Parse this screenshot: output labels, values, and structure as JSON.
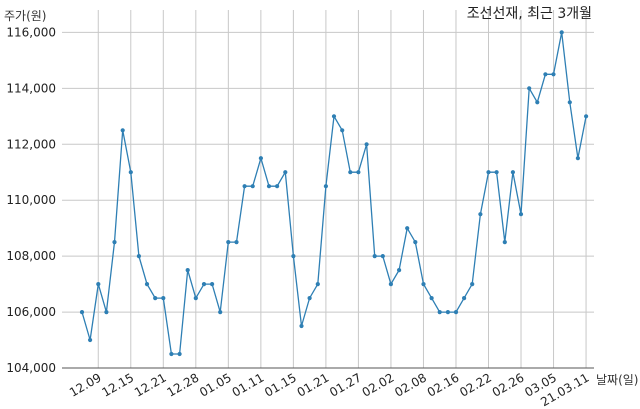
{
  "chart_data": {
    "type": "line",
    "title": "조선선재, 최근 3개월",
    "ylabel": "주가(원)",
    "xlabel": "날짜(일)",
    "ylim": [
      104000,
      116800
    ],
    "yticks": [
      104000,
      106000,
      108000,
      110000,
      112000,
      114000,
      116000
    ],
    "ytick_labels": [
      "104,000",
      "106,000",
      "108,000",
      "110,000",
      "112,000",
      "114,000",
      "116,000"
    ],
    "xticks": [
      {
        "index": 2,
        "label": "12.09"
      },
      {
        "index": 6,
        "label": "12.15"
      },
      {
        "index": 10,
        "label": "12.21"
      },
      {
        "index": 14,
        "label": "12.28"
      },
      {
        "index": 18,
        "label": "01.05"
      },
      {
        "index": 22,
        "label": "01.11"
      },
      {
        "index": 26,
        "label": "01.15"
      },
      {
        "index": 30,
        "label": "01.21"
      },
      {
        "index": 34,
        "label": "01.27"
      },
      {
        "index": 38,
        "label": "02.02"
      },
      {
        "index": 42,
        "label": "02.08"
      },
      {
        "index": 46,
        "label": "02.16"
      },
      {
        "index": 50,
        "label": "02.22"
      },
      {
        "index": 54,
        "label": "02.26"
      },
      {
        "index": 58,
        "label": "03.05"
      },
      {
        "index": 62,
        "label": "21.03.11"
      }
    ],
    "grid": true,
    "color": "#2e7fb4",
    "series": [
      {
        "values": [
          106000,
          105000,
          107000,
          106000,
          108500,
          112500,
          111000,
          108000,
          107000,
          106500,
          106500,
          104500,
          104500,
          107500,
          106500,
          107000,
          107000,
          106000,
          108500,
          108500,
          110500,
          110500,
          111500,
          110500,
          110500,
          111000,
          108000,
          105500,
          106500,
          107000,
          110500,
          113000,
          112500,
          111000,
          111000,
          112000,
          108000,
          108000,
          107000,
          107500,
          109000,
          108500,
          107000,
          106500,
          106000,
          106000,
          106000,
          106500,
          107000,
          109500,
          111000,
          111000,
          108500,
          111000,
          109500,
          114000,
          113500,
          114500,
          114500,
          116000,
          113500,
          111500,
          113000
        ]
      }
    ]
  }
}
